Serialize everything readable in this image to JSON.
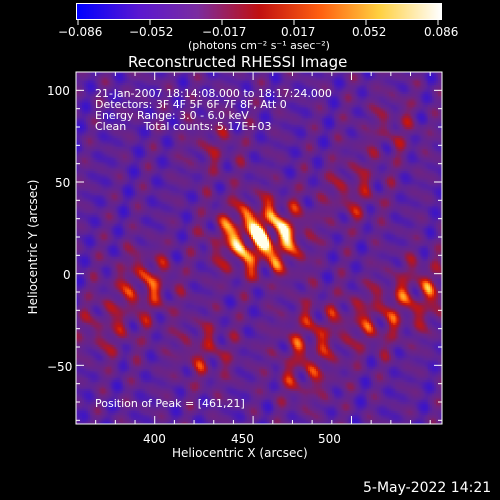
{
  "colorbar": {
    "ticks": [
      "−0.086",
      "−0.052",
      "−0.017",
      "0.017",
      "0.052",
      "0.086"
    ],
    "units": "(photons cm⁻² s⁻¹ asec⁻²)",
    "colors": [
      "#0000ff",
      "#5a18d0",
      "#7a2ca0",
      "#c01010",
      "#ff6010",
      "#ffd040",
      "#ffffff"
    ]
  },
  "title": "Reconstructed RHESSI Image",
  "info": {
    "time": "21-Jan-2007 18:14:08.000 to 18:17:24.000",
    "detectors": "Detectors: 3F 4F 5F 6F 7F 8F, Att 0",
    "energy": "Energy Range: 3.0 - 6.0 keV",
    "clean": "Clean     Total counts: 5.17E+03",
    "peak": "Position of Peak = [461,21]"
  },
  "axes": {
    "xlabel": "Heliocentric X (arcsec)",
    "ylabel": "Heliocentric Y (arcsec)",
    "xticks": [
      "400",
      "450",
      "500"
    ],
    "yticks": [
      "100",
      "50",
      "0",
      "−50"
    ]
  },
  "footer_date": "5-May-2022 14:21",
  "chart_data": {
    "type": "heatmap",
    "title": "Reconstructed RHESSI Image",
    "xlabel": "Heliocentric X (arcsec)",
    "ylabel": "Heliocentric Y (arcsec)",
    "xlim": [
      360,
      546
    ],
    "ylim": [
      -82,
      110
    ],
    "color_range": [
      -0.086,
      0.086
    ],
    "colorbar_label": "(photons cm⁻² s⁻¹ asec⁻²)",
    "peak_position": [
      461,
      21
    ],
    "bright_sources": [
      {
        "x": 461,
        "y": 21,
        "value": 0.086
      },
      {
        "x": 443,
        "y": 20,
        "value": 0.07
      },
      {
        "x": 395,
        "y": -5,
        "value": 0.055
      },
      {
        "x": 510,
        "y": -25,
        "value": 0.045
      },
      {
        "x": 535,
        "y": -10,
        "value": 0.055
      },
      {
        "x": 500,
        "y": 45,
        "value": 0.04
      },
      {
        "x": 425,
        "y": -42,
        "value": 0.04
      },
      {
        "x": 475,
        "y": -55,
        "value": 0.038
      },
      {
        "x": 375,
        "y": -30,
        "value": 0.035
      },
      {
        "x": 430,
        "y": 70,
        "value": 0.03
      },
      {
        "x": 520,
        "y": 80,
        "value": 0.03
      },
      {
        "x": 480,
        "y": -30,
        "value": 0.04
      }
    ]
  }
}
